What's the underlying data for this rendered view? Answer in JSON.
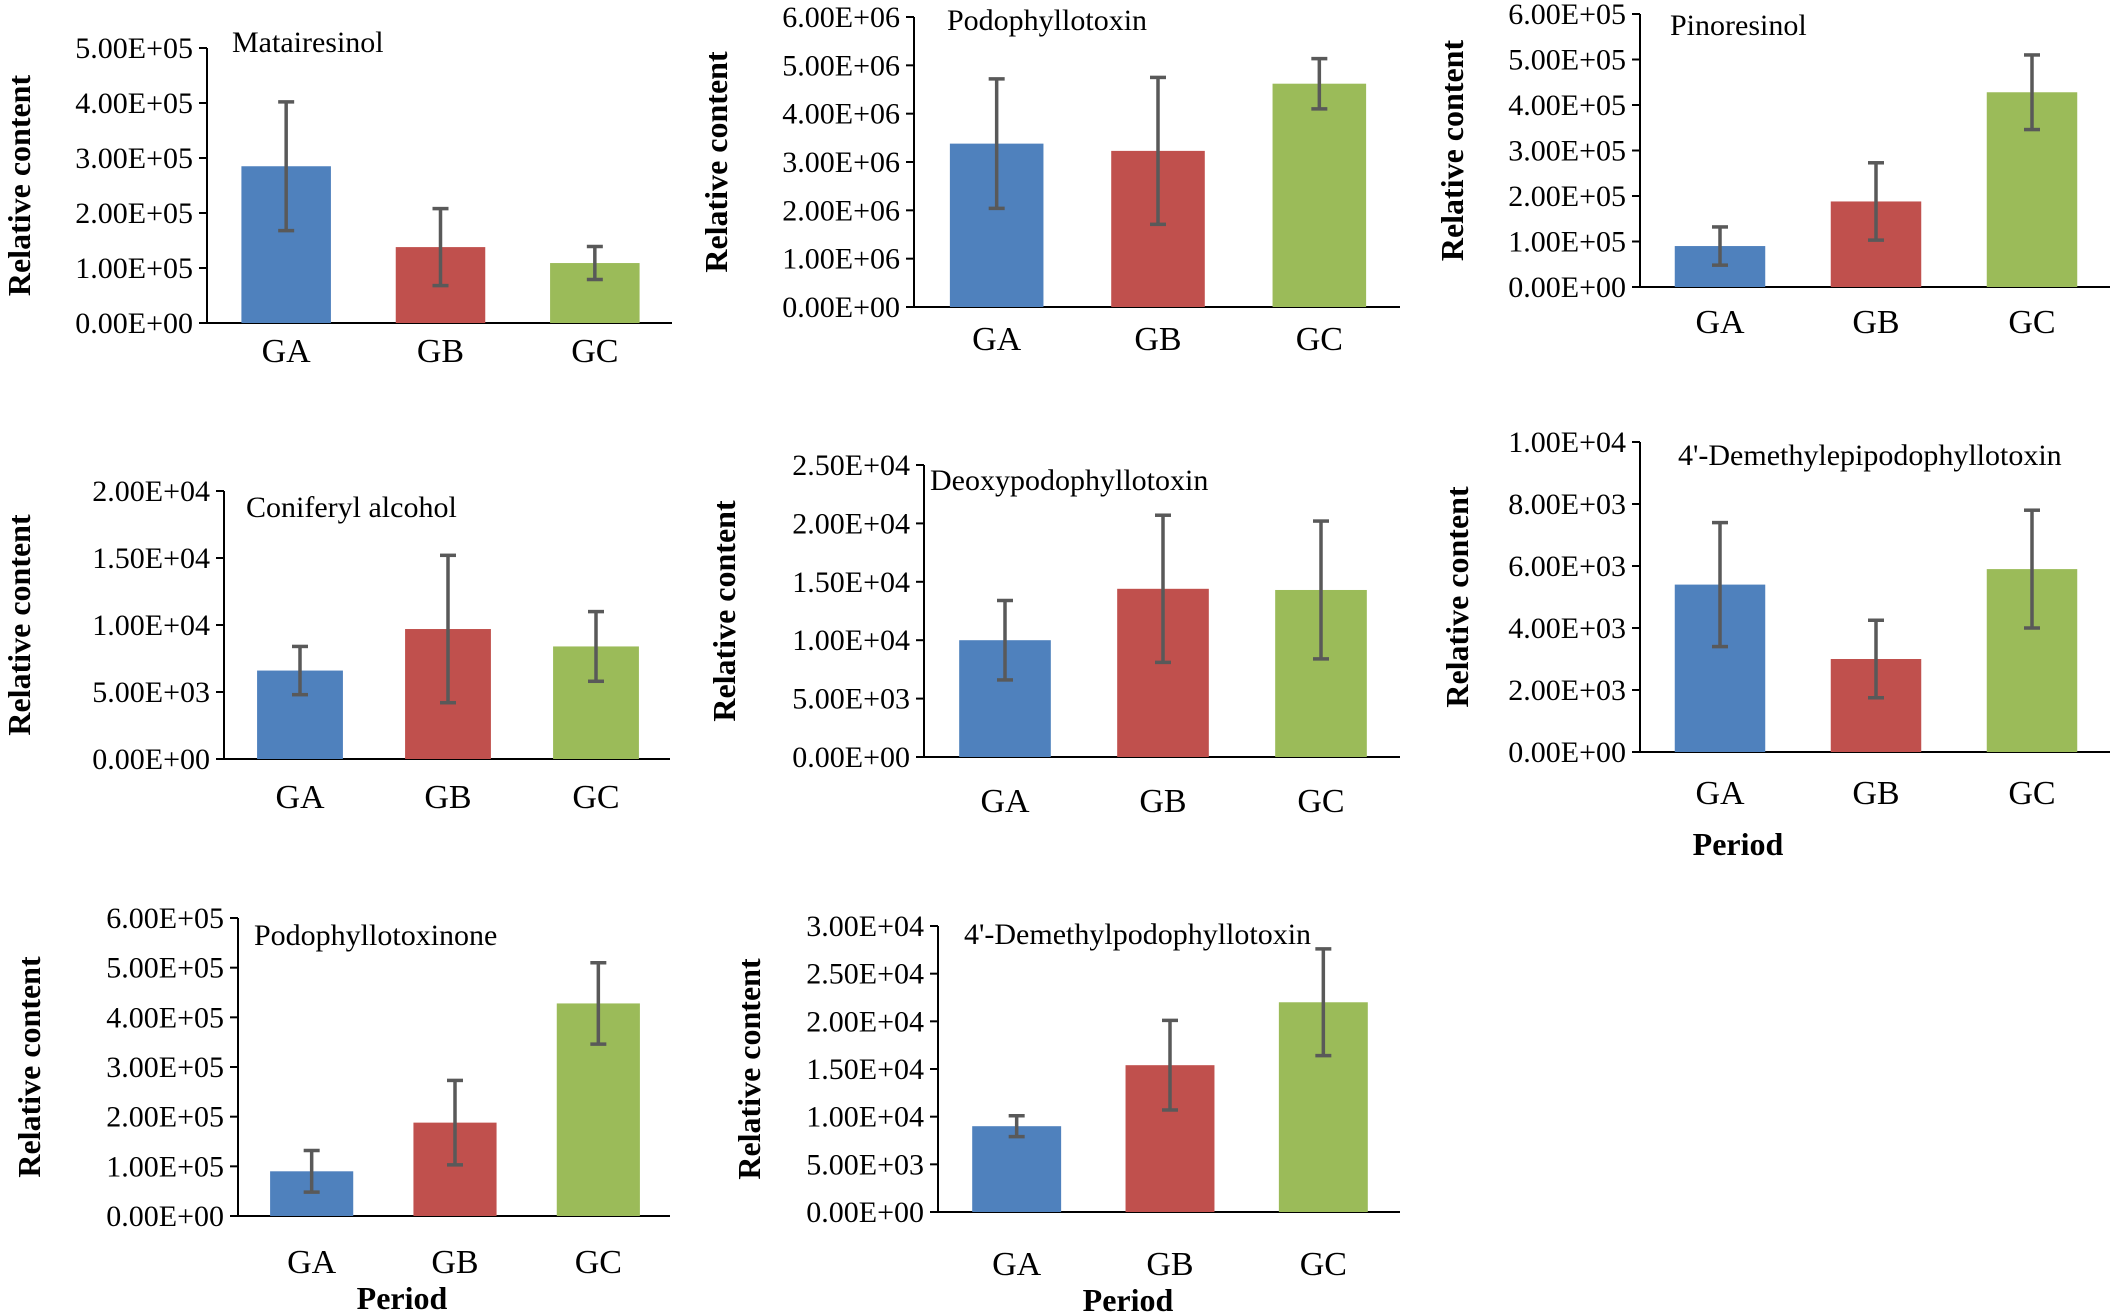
{
  "page": {
    "background": "#ffffff"
  },
  "colors": {
    "GA": "#4f81bd",
    "GB": "#c0504d",
    "GC": "#9bbb59",
    "error_bar": "#595959",
    "axis": "#000000"
  },
  "chart_data": [
    {
      "type": "bar",
      "title": "Matairesinol",
      "categories": [
        "GA",
        "GB",
        "GC"
      ],
      "values": [
        285000,
        138000,
        109000
      ],
      "errors": [
        117000,
        70000,
        30000
      ],
      "ylim": [
        0,
        500000
      ],
      "yticks": [
        0,
        100000,
        200000,
        300000,
        400000,
        500000
      ],
      "ytick_labels": [
        "0.00E+00",
        "1.00E+05",
        "2.00E+05",
        "3.00E+05",
        "4.00E+05",
        "5.00E+05"
      ],
      "ylabel": "Relative content",
      "xlabel": "",
      "grid": false,
      "legend": "none"
    },
    {
      "type": "bar",
      "title": "Podophyllotoxin",
      "categories": [
        "GA",
        "GB",
        "GC"
      ],
      "values": [
        3380000,
        3230000,
        4620000
      ],
      "errors": [
        1340000,
        1520000,
        520000
      ],
      "ylim": [
        0,
        6000000
      ],
      "yticks": [
        0,
        1000000,
        2000000,
        3000000,
        4000000,
        5000000,
        6000000
      ],
      "ytick_labels": [
        "0.00E+00",
        "1.00E+06",
        "2.00E+06",
        "3.00E+06",
        "4.00E+06",
        "5.00E+06",
        "6.00E+06"
      ],
      "ylabel": "Relative content",
      "xlabel": "",
      "grid": false,
      "legend": "none"
    },
    {
      "type": "bar",
      "title": "Pinoresinol",
      "categories": [
        "GA",
        "GB",
        "GC"
      ],
      "values": [
        90000,
        188000,
        428000
      ],
      "errors": [
        42000,
        85000,
        82000
      ],
      "ylim": [
        0,
        600000
      ],
      "yticks": [
        0,
        100000,
        200000,
        300000,
        400000,
        500000,
        600000
      ],
      "ytick_labels": [
        "0.00E+00",
        "1.00E+05",
        "2.00E+05",
        "3.00E+05",
        "4.00E+05",
        "5.00E+05",
        "6.00E+05"
      ],
      "ylabel": "Relative content",
      "xlabel": "",
      "grid": false,
      "legend": "none"
    },
    {
      "type": "bar",
      "title": "Coniferyl alcohol",
      "categories": [
        "GA",
        "GB",
        "GC"
      ],
      "values": [
        6600,
        9700,
        8400
      ],
      "errors": [
        1800,
        5500,
        2600
      ],
      "ylim": [
        0,
        20000
      ],
      "yticks": [
        0,
        5000,
        10000,
        15000,
        20000
      ],
      "ytick_labels": [
        "0.00E+00",
        "5.00E+03",
        "1.00E+04",
        "1.50E+04",
        "2.00E+04"
      ],
      "ylabel": "Relative content",
      "xlabel": "",
      "grid": false,
      "legend": "none"
    },
    {
      "type": "bar",
      "title": "Deoxypodophyllotoxin",
      "categories": [
        "GA",
        "GB",
        "GC"
      ],
      "values": [
        10000,
        14400,
        14300
      ],
      "errors": [
        3400,
        6300,
        5900
      ],
      "ylim": [
        0,
        25000
      ],
      "yticks": [
        0,
        5000,
        10000,
        15000,
        20000,
        25000
      ],
      "ytick_labels": [
        "0.00E+00",
        "5.00E+03",
        "1.00E+04",
        "1.50E+04",
        "2.00E+04",
        "2.50E+04"
      ],
      "ylabel": "Relative content",
      "xlabel": "",
      "grid": false,
      "legend": "none"
    },
    {
      "type": "bar",
      "title": "4'-Demethylepipodophyllotoxin",
      "categories": [
        "GA",
        "GB",
        "GC"
      ],
      "values": [
        5400,
        3000,
        5900
      ],
      "errors": [
        2000,
        1250,
        1900
      ],
      "ylim": [
        0,
        10000
      ],
      "yticks": [
        0,
        2000,
        4000,
        6000,
        8000,
        10000
      ],
      "ytick_labels": [
        "0.00E+00",
        "2.00E+03",
        "4.00E+03",
        "6.00E+03",
        "8.00E+03",
        "1.00E+04"
      ],
      "ylabel": "Relative content",
      "xlabel": "Period",
      "grid": false,
      "legend": "none"
    },
    {
      "type": "bar",
      "title": "Podophyllotoxinone",
      "categories": [
        "GA",
        "GB",
        "GC"
      ],
      "values": [
        90000,
        188000,
        428000
      ],
      "errors": [
        42000,
        85000,
        82000
      ],
      "ylim": [
        0,
        600000
      ],
      "yticks": [
        0,
        100000,
        200000,
        300000,
        400000,
        500000,
        600000
      ],
      "ytick_labels": [
        "0.00E+00",
        "1.00E+05",
        "2.00E+05",
        "3.00E+05",
        "4.00E+05",
        "5.00E+05",
        "6.00E+05"
      ],
      "ylabel": "Relative content",
      "xlabel": "Period",
      "grid": false,
      "legend": "none"
    },
    {
      "type": "bar",
      "title": "4'-Demethylpodophyllotoxin",
      "categories": [
        "GA",
        "GB",
        "GC"
      ],
      "values": [
        9000,
        15400,
        22000
      ],
      "errors": [
        1100,
        4700,
        5600
      ],
      "ylim": [
        0,
        30000
      ],
      "yticks": [
        0,
        5000,
        10000,
        15000,
        20000,
        25000,
        30000
      ],
      "ytick_labels": [
        "0.00E+00",
        "5.00E+03",
        "1.00E+04",
        "1.50E+04",
        "2.00E+04",
        "2.50E+04",
        "3.00E+04"
      ],
      "ylabel": "Relative content",
      "xlabel": "Period",
      "grid": false,
      "legend": "none"
    }
  ]
}
